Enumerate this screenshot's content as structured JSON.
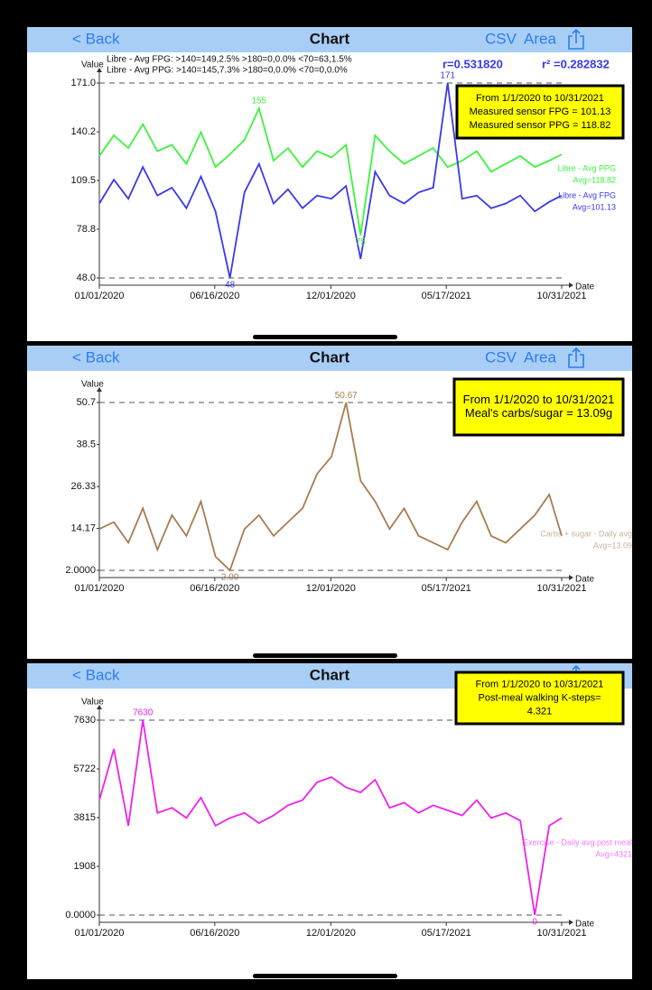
{
  "nav_bars": [
    {
      "back": "< Back",
      "title": "Chart",
      "csv": "CSV",
      "area": "Area"
    },
    {
      "back": "< Back",
      "title": "Chart",
      "csv": "CSV",
      "area": "Area"
    },
    {
      "back": "< Back",
      "title": "Chart"
    }
  ],
  "chart_data": [
    {
      "type": "line",
      "y_label": "Value",
      "x_label": "Date",
      "stats": [
        "Libre - Avg FPG: >140=149,2.5%  >180=0,0.0%  <70=63,1.5%",
        "Libre - Avg PPG: >140=145,7.3%  >180=0,0.0%  <70=0,0.0%"
      ],
      "r_label": "r=0.531820",
      "r2_label": "r² =0.282832",
      "info_box": [
        "From 1/1/2020 to 10/31/2021",
        "Measured sensor FPG = 101.13",
        "Measured sensor PPG = 118.82"
      ],
      "xlim": [
        "01/01/2020",
        "10/31/2021"
      ],
      "xticks": [
        "01/01/2020",
        "06/16/2020",
        "12/01/2020",
        "05/17/2021",
        "10/31/2021"
      ],
      "ylim": [
        48,
        171
      ],
      "yticks": [
        {
          "value": 171,
          "label": "171.0"
        },
        140.2,
        109.5,
        78.8,
        {
          "value": 48,
          "label": "48.0"
        }
      ],
      "x": [
        "01/01/2020",
        "01/22/2020",
        "02/12/2020",
        "03/04/2020",
        "03/25/2020",
        "04/15/2020",
        "05/06/2020",
        "05/27/2020",
        "06/17/2020",
        "07/08/2020",
        "07/29/2020",
        "08/19/2020",
        "09/09/2020",
        "09/30/2020",
        "10/21/2020",
        "11/11/2020",
        "12/02/2020",
        "12/23/2020",
        "01/13/2021",
        "02/03/2021",
        "02/24/2021",
        "03/17/2021",
        "04/07/2021",
        "04/28/2021",
        "05/19/2021",
        "06/09/2021",
        "06/30/2021",
        "07/21/2021",
        "08/11/2021",
        "09/01/2021",
        "09/22/2021",
        "10/13/2021",
        "10/31/2021"
      ],
      "series": [
        {
          "name": "Libre - Avg PPG",
          "avg_label": "Avg=118.82",
          "color": "#3ef23e",
          "values": [
            125,
            138,
            130,
            145,
            128,
            132,
            120,
            140,
            118,
            126,
            135,
            155,
            122,
            130,
            118,
            128,
            124,
            132,
            75,
            138,
            128,
            120,
            125,
            130,
            118,
            122,
            128,
            115,
            120,
            125,
            118,
            122,
            126
          ]
        },
        {
          "name": "Libre - Avg FPG",
          "avg_label": "Avg=101.13",
          "color": "#3a3ae8",
          "values": [
            95,
            110,
            98,
            118,
            100,
            105,
            92,
            112,
            90,
            48,
            102,
            120,
            95,
            104,
            92,
            100,
            98,
            106,
            60,
            115,
            100,
            95,
            102,
            105,
            171,
            98,
            100,
            92,
            95,
            100,
            90,
            96,
            100
          ]
        }
      ],
      "annotations": [
        {
          "text": "155",
          "x": "08/19/2020",
          "y": 155,
          "color": "#3ef23e"
        },
        {
          "text": "75",
          "x": "01/13/2021",
          "y": 75,
          "color": "#3ef23e"
        },
        {
          "text": "48",
          "x": "07/08/2020",
          "y": 48,
          "color": "#3a3ae8"
        },
        {
          "text": "171",
          "x": "05/19/2021",
          "y": 171,
          "color": "#3a3ae8"
        }
      ]
    },
    {
      "type": "line",
      "y_label": "Value",
      "x_label": "Date",
      "info_box": [
        "From 1/1/2020 to 10/31/2021",
        "Meal's carbs/sugar = 13.09g"
      ],
      "xlim": [
        "01/01/2020",
        "10/31/2021"
      ],
      "xticks": [
        "01/01/2020",
        "06/16/2020",
        "12/01/2020",
        "05/17/2021",
        "10/31/2021"
      ],
      "ylim": [
        2,
        50.7
      ],
      "yticks": [
        50.7,
        38.5,
        26.33,
        14.17,
        {
          "value": 2,
          "label": "2.0000"
        }
      ],
      "x": [
        "01/01/2020",
        "01/22/2020",
        "02/12/2020",
        "03/04/2020",
        "03/25/2020",
        "04/15/2020",
        "05/06/2020",
        "05/27/2020",
        "06/17/2020",
        "07/08/2020",
        "07/29/2020",
        "08/19/2020",
        "09/09/2020",
        "09/30/2020",
        "10/21/2020",
        "11/11/2020",
        "12/02/2020",
        "12/23/2020",
        "01/13/2021",
        "02/03/2021",
        "02/24/2021",
        "03/17/2021",
        "04/07/2021",
        "04/28/2021",
        "05/19/2021",
        "06/09/2021",
        "06/30/2021",
        "07/21/2021",
        "08/11/2021",
        "09/01/2021",
        "09/22/2021",
        "10/13/2021",
        "10/31/2021"
      ],
      "series": [
        {
          "name": "Carbs + sugar - Daily avg",
          "avg_label": "Avg=13.09",
          "color": "#a87c4f",
          "values": [
            14,
            16,
            10,
            20,
            8,
            18,
            12,
            22,
            6,
            2,
            14,
            18,
            12,
            16,
            20,
            30,
            35,
            50.67,
            28,
            22,
            14,
            20,
            12,
            10,
            8,
            16,
            22,
            12,
            10,
            14,
            18,
            24,
            12
          ]
        }
      ],
      "annotations": [
        {
          "text": "50.67",
          "x": "12/23/2020",
          "y": 50.67,
          "color": "#a87c4f"
        },
        {
          "text": "2.00",
          "x": "07/08/2020",
          "y": 2,
          "color": "#a87c4f"
        }
      ]
    },
    {
      "type": "line",
      "y_label": "Value",
      "x_label": "Date",
      "info_box": [
        "From 1/1/2020 to 10/31/2021",
        "Post-meal walking K-steps=",
        "4.321"
      ],
      "xlim": [
        "01/01/2020",
        "10/31/2021"
      ],
      "xticks": [
        "01/01/2020",
        "06/16/2020",
        "12/01/2020",
        "05/17/2021",
        "10/31/2021"
      ],
      "ylim": [
        0,
        7630
      ],
      "yticks": [
        7630,
        5722,
        3815,
        1908,
        {
          "value": 0,
          "label": "0.0000"
        }
      ],
      "x": [
        "01/01/2020",
        "01/22/2020",
        "02/12/2020",
        "03/04/2020",
        "03/25/2020",
        "04/15/2020",
        "05/06/2020",
        "05/27/2020",
        "06/17/2020",
        "07/08/2020",
        "07/29/2020",
        "08/19/2020",
        "09/09/2020",
        "09/30/2020",
        "10/21/2020",
        "11/11/2020",
        "12/02/2020",
        "12/23/2020",
        "01/13/2021",
        "02/03/2021",
        "02/24/2021",
        "03/17/2021",
        "04/07/2021",
        "04/28/2021",
        "05/19/2021",
        "06/09/2021",
        "06/30/2021",
        "07/21/2021",
        "08/11/2021",
        "09/01/2021",
        "09/22/2021",
        "10/13/2021",
        "10/31/2021"
      ],
      "series": [
        {
          "name": "Exercise - Daily avg post meal",
          "avg_label": "Avg=4321",
          "color": "#ee22ee",
          "values": [
            4500,
            6500,
            3500,
            7630,
            4000,
            4200,
            3800,
            4600,
            3500,
            3800,
            4000,
            3600,
            3900,
            4300,
            4500,
            5200,
            5400,
            5000,
            4800,
            5300,
            4200,
            4400,
            4000,
            4300,
            4100,
            3900,
            4500,
            3800,
            4000,
            3700,
            0,
            3500,
            3800
          ]
        }
      ],
      "annotations": [
        {
          "text": "7630",
          "x": "03/04/2020",
          "y": 7630,
          "color": "#ee22ee"
        },
        {
          "text": "0",
          "x": "09/22/2021",
          "y": 0,
          "color": "#ee22ee"
        }
      ]
    }
  ]
}
